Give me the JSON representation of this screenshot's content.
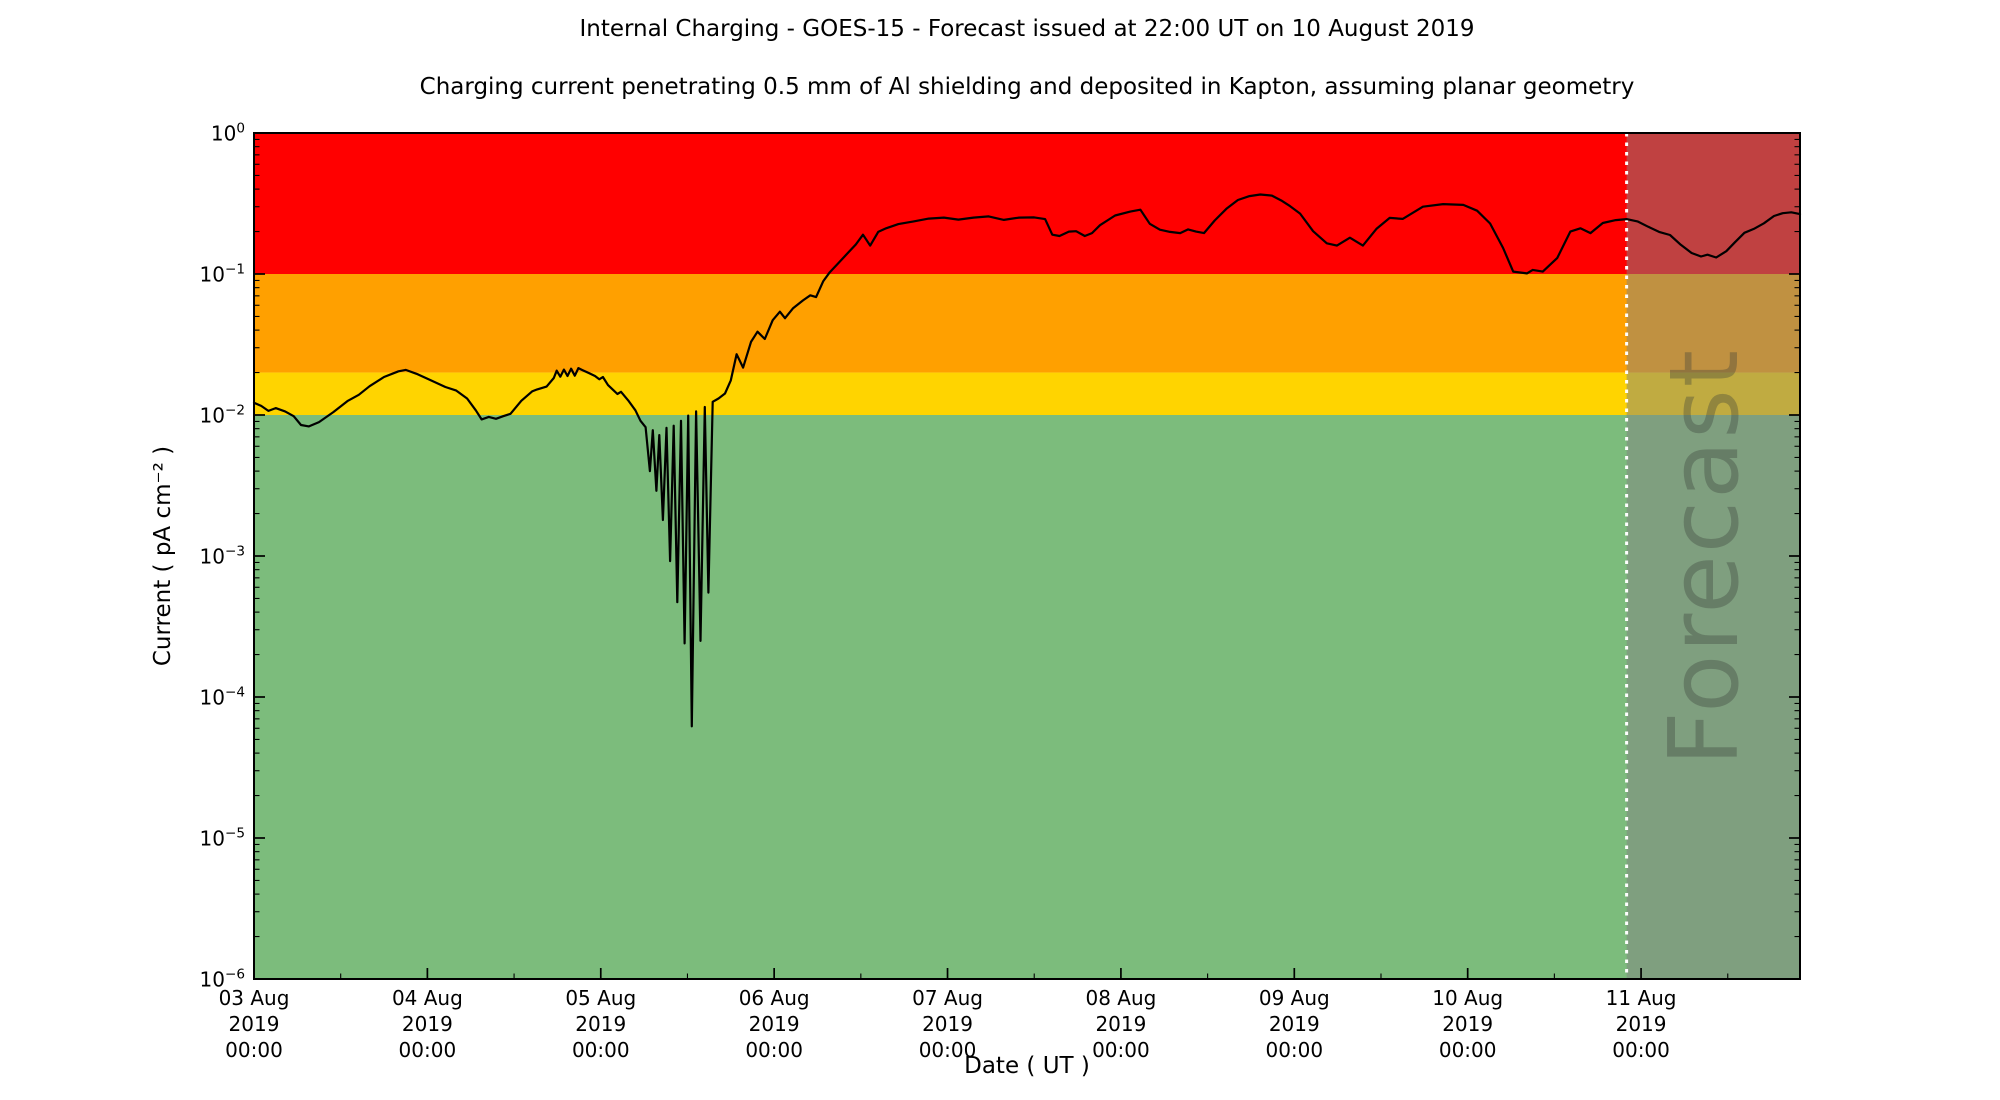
{
  "chart_data": {
    "type": "line",
    "title": "Internal Charging - GOES-15 - Forecast issued at 22:00 UT on 10 August 2019",
    "subtitle": "Charging current penetrating 0.5 mm of Al shielding and deposited in Kapton, assuming planar geometry",
    "xlabel": "Date ( UT )",
    "ylabel": "Current ( pA cm⁻² )",
    "y_scale": "log",
    "ylim": [
      1e-06,
      1.0
    ],
    "y_tick_exponents": [
      0,
      -1,
      -2,
      -3,
      -4,
      -5,
      -6
    ],
    "x_domain_hours": [
      0,
      214
    ],
    "x_major_tick_hours": [
      0,
      24,
      48,
      72,
      96,
      120,
      144,
      168,
      192
    ],
    "x_minor_tick_hours": [
      12,
      36,
      60,
      84,
      108,
      132,
      156,
      180,
      204
    ],
    "x_tick_labels": [
      [
        "03 Aug",
        "2019",
        "00:00"
      ],
      [
        "04 Aug",
        "2019",
        "00:00"
      ],
      [
        "05 Aug",
        "2019",
        "00:00"
      ],
      [
        "06 Aug",
        "2019",
        "00:00"
      ],
      [
        "07 Aug",
        "2019",
        "00:00"
      ],
      [
        "08 Aug",
        "2019",
        "00:00"
      ],
      [
        "09 Aug",
        "2019",
        "00:00"
      ],
      [
        "10 Aug",
        "2019",
        "00:00"
      ],
      [
        "11 Aug",
        "2019",
        "00:00"
      ]
    ],
    "grid": false,
    "legend": "none",
    "bands": [
      {
        "name": "red-alert-band",
        "value_from": 0.1,
        "value_to": 1.0,
        "color": "#ff0000"
      },
      {
        "name": "orange-alert-band",
        "value_from": 0.02,
        "value_to": 0.1,
        "color": "#ffa000"
      },
      {
        "name": "yellow-alert-band",
        "value_from": 0.01,
        "value_to": 0.02,
        "color": "#ffd400"
      },
      {
        "name": "green-safe-band",
        "value_from": 1e-06,
        "value_to": 0.01,
        "color": "#7cbc7c"
      }
    ],
    "forecast": {
      "label": "Forecast",
      "start_hour": 190,
      "overlay_color": "rgba(130,130,130,0.5)",
      "divider_color": "#ffffff",
      "divider_style": "dotted"
    },
    "series": [
      {
        "name": "charging-current",
        "color": "#000000",
        "points": [
          [
            0,
            0.0122
          ],
          [
            1,
            0.0116
          ],
          [
            2,
            0.0107
          ],
          [
            3,
            0.0112
          ],
          [
            4.3,
            0.0106
          ],
          [
            5.5,
            0.0098
          ],
          [
            6.5,
            0.0085
          ],
          [
            7.6,
            0.0083
          ],
          [
            9,
            0.0089
          ],
          [
            11,
            0.0105
          ],
          [
            13,
            0.0126
          ],
          [
            14.5,
            0.0139
          ],
          [
            16,
            0.016
          ],
          [
            18,
            0.0186
          ],
          [
            20,
            0.0204
          ],
          [
            21,
            0.0209
          ],
          [
            22.5,
            0.0196
          ],
          [
            24.5,
            0.0176
          ],
          [
            26.5,
            0.0158
          ],
          [
            28,
            0.0149
          ],
          [
            29.5,
            0.0131
          ],
          [
            30.7,
            0.0108
          ],
          [
            31.5,
            0.0093
          ],
          [
            32.5,
            0.0097
          ],
          [
            33.5,
            0.0094
          ],
          [
            34.5,
            0.0098
          ],
          [
            35.5,
            0.0102
          ],
          [
            37,
            0.0126
          ],
          [
            38.5,
            0.0147
          ],
          [
            39.2,
            0.0152
          ],
          [
            40.5,
            0.0159
          ],
          [
            41.5,
            0.0183
          ],
          [
            41.9,
            0.0206
          ],
          [
            42.4,
            0.0187
          ],
          [
            42.9,
            0.021
          ],
          [
            43.4,
            0.0189
          ],
          [
            43.9,
            0.0213
          ],
          [
            44.4,
            0.019
          ],
          [
            44.9,
            0.0215
          ],
          [
            45.5,
            0.0208
          ],
          [
            46.3,
            0.0199
          ],
          [
            47.2,
            0.0189
          ],
          [
            47.8,
            0.0179
          ],
          [
            48.3,
            0.0186
          ],
          [
            49,
            0.0163
          ],
          [
            49.8,
            0.0149
          ],
          [
            50.3,
            0.0141
          ],
          [
            50.8,
            0.0146
          ],
          [
            51.8,
            0.0127
          ],
          [
            52.8,
            0.0108
          ],
          [
            53.5,
            0.0091
          ],
          [
            54.2,
            0.0082
          ],
          [
            54.8,
            0.004
          ],
          [
            55.2,
            0.0078
          ],
          [
            55.7,
            0.0029
          ],
          [
            56.1,
            0.0072
          ],
          [
            56.6,
            0.0018
          ],
          [
            57.1,
            0.0081
          ],
          [
            57.6,
            0.00092
          ],
          [
            58.1,
            0.0084
          ],
          [
            58.6,
            0.00047
          ],
          [
            59.1,
            0.0091
          ],
          [
            59.6,
            0.00024
          ],
          [
            60.1,
            0.0099
          ],
          [
            60.6,
            6.2e-05
          ],
          [
            61.2,
            0.0106
          ],
          [
            61.8,
            0.00025
          ],
          [
            62.4,
            0.0114
          ],
          [
            62.9,
            0.00055
          ],
          [
            63.5,
            0.0124
          ],
          [
            64.3,
            0.0131
          ],
          [
            65.2,
            0.0142
          ],
          [
            66,
            0.0176
          ],
          [
            66.8,
            0.027
          ],
          [
            67.7,
            0.0217
          ],
          [
            68.8,
            0.033
          ],
          [
            69.7,
            0.039
          ],
          [
            70.7,
            0.0346
          ],
          [
            71.8,
            0.047
          ],
          [
            72.8,
            0.054
          ],
          [
            73.5,
            0.0486
          ],
          [
            74.6,
            0.057
          ],
          [
            76,
            0.065
          ],
          [
            77,
            0.0706
          ],
          [
            77.8,
            0.0686
          ],
          [
            78.8,
            0.089
          ],
          [
            79.7,
            0.103
          ],
          [
            81,
            0.121
          ],
          [
            82.2,
            0.141
          ],
          [
            83.3,
            0.162
          ],
          [
            84.3,
            0.19
          ],
          [
            85.3,
            0.159
          ],
          [
            86.4,
            0.199
          ],
          [
            87.5,
            0.211
          ],
          [
            89.2,
            0.226
          ],
          [
            91.3,
            0.236
          ],
          [
            93.4,
            0.247
          ],
          [
            95.5,
            0.251
          ],
          [
            97.5,
            0.243
          ],
          [
            99.6,
            0.251
          ],
          [
            101.7,
            0.256
          ],
          [
            103.8,
            0.242
          ],
          [
            105.9,
            0.251
          ],
          [
            108,
            0.252
          ],
          [
            109.5,
            0.245
          ],
          [
            110.5,
            0.19
          ],
          [
            111.5,
            0.186
          ],
          [
            112.8,
            0.2
          ],
          [
            113.8,
            0.201
          ],
          [
            115,
            0.186
          ],
          [
            116,
            0.195
          ],
          [
            117.1,
            0.222
          ],
          [
            119.2,
            0.26
          ],
          [
            121.3,
            0.277
          ],
          [
            122.7,
            0.286
          ],
          [
            124,
            0.227
          ],
          [
            125.4,
            0.206
          ],
          [
            126.8,
            0.199
          ],
          [
            128.2,
            0.195
          ],
          [
            129.3,
            0.207
          ],
          [
            130.4,
            0.2
          ],
          [
            131.5,
            0.195
          ],
          [
            133,
            0.24
          ],
          [
            134.6,
            0.29
          ],
          [
            136.2,
            0.335
          ],
          [
            137.8,
            0.357
          ],
          [
            139.3,
            0.366
          ],
          [
            140.9,
            0.36
          ],
          [
            142.3,
            0.33
          ],
          [
            143.4,
            0.303
          ],
          [
            144.8,
            0.268
          ],
          [
            146.6,
            0.201
          ],
          [
            148.5,
            0.165
          ],
          [
            149.9,
            0.159
          ],
          [
            151.7,
            0.181
          ],
          [
            153.5,
            0.159
          ],
          [
            155.4,
            0.21
          ],
          [
            157.2,
            0.25
          ],
          [
            159,
            0.246
          ],
          [
            161.8,
            0.3
          ],
          [
            164.6,
            0.313
          ],
          [
            167.4,
            0.309
          ],
          [
            169.3,
            0.281
          ],
          [
            171.1,
            0.228
          ],
          [
            172.9,
            0.153
          ],
          [
            174.3,
            0.104
          ],
          [
            176.2,
            0.101
          ],
          [
            177,
            0.107
          ],
          [
            178.4,
            0.104
          ],
          [
            180.4,
            0.13
          ],
          [
            182.2,
            0.2
          ],
          [
            183.6,
            0.211
          ],
          [
            185,
            0.195
          ],
          [
            186.7,
            0.23
          ],
          [
            188.5,
            0.241
          ],
          [
            190,
            0.245
          ],
          [
            191.5,
            0.236
          ],
          [
            193,
            0.216
          ],
          [
            194.5,
            0.199
          ],
          [
            196,
            0.189
          ],
          [
            197.5,
            0.161
          ],
          [
            199,
            0.141
          ],
          [
            200.3,
            0.133
          ],
          [
            201.2,
            0.137
          ],
          [
            202.4,
            0.131
          ],
          [
            203.8,
            0.145
          ],
          [
            205,
            0.168
          ],
          [
            206.3,
            0.196
          ],
          [
            207.6,
            0.209
          ],
          [
            209,
            0.229
          ],
          [
            210.4,
            0.258
          ],
          [
            211.6,
            0.27
          ],
          [
            212.8,
            0.274
          ],
          [
            214,
            0.266
          ]
        ]
      }
    ]
  }
}
